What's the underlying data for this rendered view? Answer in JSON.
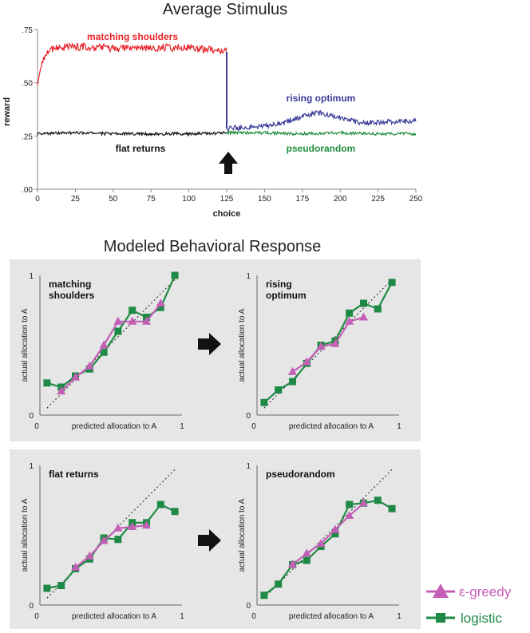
{
  "colors": {
    "matching_shoulders": "#e8242b",
    "rising_optimum": "#3b3a98",
    "flat_returns": "#111111",
    "pseudorandom": "#1f8c3c",
    "greedy": "#c45fb6",
    "logistic": "#1f8a45",
    "panel_bg": "#e6e6e6"
  },
  "top": {
    "title": "Average Stimulus",
    "chart_data": {
      "type": "line",
      "title": "Average Stimulus",
      "xlabel": "choice",
      "ylabel": "reward",
      "xlim": [
        0,
        250
      ],
      "ylim": [
        0,
        0.75
      ],
      "x_ticks": [
        0,
        25,
        50,
        75,
        100,
        125,
        150,
        175,
        200,
        225,
        250
      ],
      "x_tick_labels": [
        "0",
        "25",
        "50",
        "75",
        "100",
        "125",
        "150",
        "175",
        "200",
        "225",
        "250"
      ],
      "y_ticks": [
        0,
        0.25,
        0.5,
        0.75
      ],
      "y_tick_labels": [
        ".00",
        ".25",
        ".50",
        ".75"
      ],
      "annotation_x": 125,
      "series": [
        {
          "name": "matching shoulders",
          "x": [
            0,
            3,
            8,
            15,
            25,
            40,
            60,
            80,
            100,
            115,
            125
          ],
          "y": [
            0.5,
            0.6,
            0.66,
            0.665,
            0.67,
            0.665,
            0.66,
            0.665,
            0.665,
            0.655,
            0.645
          ]
        },
        {
          "name": "flat returns",
          "x": [
            0,
            25,
            50,
            75,
            100,
            125
          ],
          "y": [
            0.26,
            0.265,
            0.26,
            0.26,
            0.26,
            0.265
          ]
        },
        {
          "name": "rising optimum",
          "x": [
            125,
            140,
            155,
            170,
            185,
            200,
            215,
            230,
            250
          ],
          "y": [
            0.285,
            0.29,
            0.3,
            0.33,
            0.36,
            0.335,
            0.31,
            0.315,
            0.32
          ]
        },
        {
          "name": "pseudorandom",
          "x": [
            125,
            150,
            175,
            200,
            225,
            250
          ],
          "y": [
            0.265,
            0.265,
            0.26,
            0.265,
            0.26,
            0.26
          ]
        }
      ]
    }
  },
  "bottom": {
    "title": "Modeled Behavioral Response",
    "xlabel": "predicted allocation to A",
    "ylabel": "actual allocation to A",
    "tick_0": "0",
    "tick_1": "1",
    "legend": {
      "greedy": "ε-greedy",
      "logistic": "logistic"
    },
    "panels": [
      {
        "title_line1": "matching",
        "title_line2": "shoulders",
        "chart_data": {
          "type": "line",
          "xlim": [
            0,
            1
          ],
          "ylim": [
            0,
            1
          ],
          "series": [
            {
              "name": "ε-greedy",
              "x": [
                0.15,
                0.25,
                0.35,
                0.45,
                0.55,
                0.65,
                0.75,
                0.85
              ],
              "y": [
                0.17,
                0.27,
                0.35,
                0.5,
                0.67,
                0.67,
                0.67,
                0.8
              ]
            },
            {
              "name": "logistic",
              "x": [
                0.05,
                0.15,
                0.25,
                0.35,
                0.45,
                0.55,
                0.65,
                0.75,
                0.85,
                0.95
              ],
              "y": [
                0.23,
                0.2,
                0.28,
                0.33,
                0.45,
                0.6,
                0.75,
                0.7,
                0.77,
                1.0
              ]
            }
          ]
        }
      },
      {
        "title_line1": "rising",
        "title_line2": "optimum",
        "chart_data": {
          "type": "line",
          "xlim": [
            0,
            1
          ],
          "ylim": [
            0,
            1
          ],
          "series": [
            {
              "name": "ε-greedy",
              "x": [
                0.25,
                0.35,
                0.45,
                0.55,
                0.65,
                0.75
              ],
              "y": [
                0.31,
                0.38,
                0.49,
                0.51,
                0.67,
                0.7
              ]
            },
            {
              "name": "logistic",
              "x": [
                0.05,
                0.15,
                0.25,
                0.35,
                0.45,
                0.55,
                0.65,
                0.75,
                0.85,
                0.95
              ],
              "y": [
                0.09,
                0.18,
                0.24,
                0.37,
                0.5,
                0.53,
                0.73,
                0.8,
                0.76,
                0.95
              ]
            }
          ]
        }
      },
      {
        "title_line1": "flat returns",
        "title_line2": "",
        "chart_data": {
          "type": "line",
          "xlim": [
            0,
            1
          ],
          "ylim": [
            0,
            1
          ],
          "series": [
            {
              "name": "ε-greedy",
              "x": [
                0.25,
                0.35,
                0.45,
                0.55,
                0.65,
                0.75
              ],
              "y": [
                0.27,
                0.35,
                0.46,
                0.55,
                0.56,
                0.57
              ]
            },
            {
              "name": "logistic",
              "x": [
                0.05,
                0.15,
                0.25,
                0.35,
                0.45,
                0.55,
                0.65,
                0.75,
                0.85,
                0.95
              ],
              "y": [
                0.12,
                0.14,
                0.26,
                0.33,
                0.48,
                0.47,
                0.59,
                0.59,
                0.72,
                0.67
              ]
            }
          ]
        }
      },
      {
        "title_line1": "pseudorandom",
        "title_line2": "",
        "chart_data": {
          "type": "line",
          "xlim": [
            0,
            1
          ],
          "ylim": [
            0,
            1
          ],
          "series": [
            {
              "name": "ε-greedy",
              "x": [
                0.25,
                0.35,
                0.45,
                0.55,
                0.65,
                0.75
              ],
              "y": [
                0.29,
                0.37,
                0.44,
                0.54,
                0.64,
                0.73
              ]
            },
            {
              "name": "logistic",
              "x": [
                0.05,
                0.15,
                0.25,
                0.35,
                0.45,
                0.55,
                0.65,
                0.75,
                0.85,
                0.95
              ],
              "y": [
                0.07,
                0.15,
                0.29,
                0.32,
                0.42,
                0.51,
                0.72,
                0.73,
                0.75,
                0.69
              ]
            }
          ]
        }
      }
    ]
  }
}
